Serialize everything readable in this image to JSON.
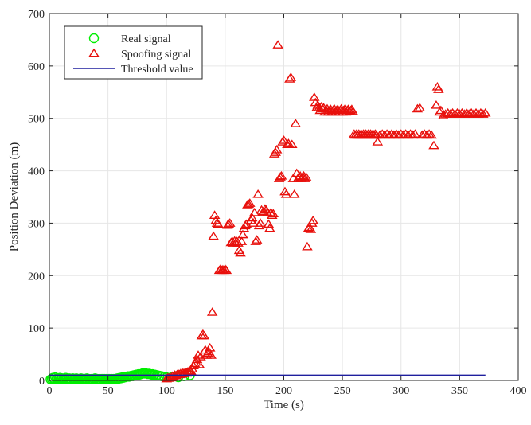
{
  "chart_data": {
    "type": "scatter",
    "title": "",
    "xlabel": "Time (s)",
    "ylabel": "Position Deviation (m)",
    "xlim": [
      0,
      400
    ],
    "ylim": [
      0,
      700
    ],
    "xticks": [
      0,
      50,
      100,
      150,
      200,
      250,
      300,
      350,
      400
    ],
    "yticks": [
      0,
      100,
      200,
      300,
      400,
      500,
      600,
      700
    ],
    "grid": true,
    "legend_position": "top-left",
    "series": [
      {
        "name": "Real signal",
        "marker": "circle",
        "color": "#00ee00",
        "points": [
          [
            1,
            2
          ],
          [
            2,
            3
          ],
          [
            3,
            5
          ],
          [
            4,
            2
          ],
          [
            5,
            6
          ],
          [
            6,
            3
          ],
          [
            7,
            4
          ],
          [
            8,
            2
          ],
          [
            9,
            5
          ],
          [
            10,
            3
          ],
          [
            11,
            4
          ],
          [
            12,
            2
          ],
          [
            13,
            3
          ],
          [
            14,
            5
          ],
          [
            15,
            3
          ],
          [
            16,
            2
          ],
          [
            17,
            4
          ],
          [
            18,
            3
          ],
          [
            19,
            2
          ],
          [
            20,
            4
          ],
          [
            21,
            3
          ],
          [
            22,
            2
          ],
          [
            23,
            4
          ],
          [
            24,
            3
          ],
          [
            25,
            2
          ],
          [
            26,
            3
          ],
          [
            27,
            4
          ],
          [
            28,
            2
          ],
          [
            29,
            3
          ],
          [
            30,
            2
          ],
          [
            31,
            3
          ],
          [
            32,
            4
          ],
          [
            33,
            2
          ],
          [
            34,
            3
          ],
          [
            35,
            2
          ],
          [
            36,
            3
          ],
          [
            37,
            2
          ],
          [
            38,
            3
          ],
          [
            39,
            4
          ],
          [
            40,
            2
          ],
          [
            41,
            3
          ],
          [
            42,
            2
          ],
          [
            43,
            3
          ],
          [
            44,
            2
          ],
          [
            45,
            3
          ],
          [
            46,
            2
          ],
          [
            47,
            3
          ],
          [
            48,
            2
          ],
          [
            49,
            3
          ],
          [
            50,
            2
          ],
          [
            51,
            3
          ],
          [
            52,
            2
          ],
          [
            53,
            3
          ],
          [
            54,
            2
          ],
          [
            55,
            3
          ],
          [
            56,
            2
          ],
          [
            57,
            3
          ],
          [
            58,
            4
          ],
          [
            59,
            3
          ],
          [
            60,
            5
          ],
          [
            61,
            4
          ],
          [
            62,
            6
          ],
          [
            63,
            5
          ],
          [
            64,
            7
          ],
          [
            65,
            6
          ],
          [
            66,
            7
          ],
          [
            67,
            8
          ],
          [
            68,
            7
          ],
          [
            69,
            8
          ],
          [
            70,
            9
          ],
          [
            71,
            8
          ],
          [
            72,
            10
          ],
          [
            73,
            9
          ],
          [
            74,
            11
          ],
          [
            75,
            10
          ],
          [
            76,
            12
          ],
          [
            77,
            11
          ],
          [
            78,
            12
          ],
          [
            79,
            13
          ],
          [
            80,
            14
          ],
          [
            81,
            13
          ],
          [
            82,
            14
          ],
          [
            83,
            13
          ],
          [
            84,
            12
          ],
          [
            85,
            13
          ],
          [
            86,
            12
          ],
          [
            87,
            11
          ],
          [
            88,
            12
          ],
          [
            89,
            10
          ],
          [
            90,
            11
          ],
          [
            92,
            10
          ],
          [
            94,
            9
          ],
          [
            96,
            8
          ],
          [
            98,
            7
          ],
          [
            100,
            6
          ],
          [
            105,
            7
          ],
          [
            110,
            6
          ],
          [
            115,
            8
          ],
          [
            120,
            10
          ]
        ]
      },
      {
        "name": "Spoofing signal",
        "marker": "triangle",
        "color": "#e8100c",
        "points": [
          [
            100,
            3
          ],
          [
            101,
            5
          ],
          [
            102,
            4
          ],
          [
            103,
            6
          ],
          [
            104,
            5
          ],
          [
            105,
            8
          ],
          [
            106,
            7
          ],
          [
            107,
            10
          ],
          [
            108,
            9
          ],
          [
            109,
            11
          ],
          [
            110,
            12
          ],
          [
            111,
            11
          ],
          [
            112,
            13
          ],
          [
            113,
            12
          ],
          [
            114,
            14
          ],
          [
            115,
            13
          ],
          [
            116,
            15
          ],
          [
            117,
            14
          ],
          [
            118,
            16
          ],
          [
            119,
            17
          ],
          [
            120,
            18
          ],
          [
            121,
            17
          ],
          [
            122,
            22
          ],
          [
            123,
            28
          ],
          [
            124,
            32
          ],
          [
            125,
            35
          ],
          [
            126,
            40
          ],
          [
            127,
            48
          ],
          [
            128,
            30
          ],
          [
            129,
            45
          ],
          [
            130,
            85
          ],
          [
            131,
            88
          ],
          [
            132,
            85
          ],
          [
            133,
            58
          ],
          [
            134,
            48
          ],
          [
            135,
            52
          ],
          [
            136,
            55
          ],
          [
            137,
            62
          ],
          [
            138,
            48
          ],
          [
            139,
            130
          ],
          [
            140,
            275
          ],
          [
            141,
            315
          ],
          [
            142,
            305
          ],
          [
            143,
            300
          ],
          [
            144,
            298
          ],
          [
            145,
            210
          ],
          [
            146,
            212
          ],
          [
            147,
            210
          ],
          [
            148,
            211
          ],
          [
            149,
            210
          ],
          [
            150,
            212
          ],
          [
            151,
            210
          ],
          [
            152,
            296
          ],
          [
            153,
            298
          ],
          [
            154,
            300
          ],
          [
            155,
            263
          ],
          [
            156,
            265
          ],
          [
            157,
            262
          ],
          [
            158,
            266
          ],
          [
            159,
            263
          ],
          [
            160,
            265
          ],
          [
            161,
            262
          ],
          [
            162,
            248
          ],
          [
            163,
            243
          ],
          [
            164,
            265
          ],
          [
            165,
            278
          ],
          [
            166,
            290
          ],
          [
            167,
            295
          ],
          [
            168,
            298
          ],
          [
            169,
            335
          ],
          [
            170,
            336
          ],
          [
            171,
            338
          ],
          [
            172,
            305
          ],
          [
            173,
            310
          ],
          [
            174,
            300
          ],
          [
            175,
            320
          ],
          [
            176,
            265
          ],
          [
            177,
            268
          ],
          [
            178,
            355
          ],
          [
            179,
            295
          ],
          [
            180,
            300
          ],
          [
            181,
            325
          ],
          [
            182,
            320
          ],
          [
            183,
            322
          ],
          [
            184,
            327
          ],
          [
            185,
            325
          ],
          [
            186,
            320
          ],
          [
            187,
            298
          ],
          [
            188,
            290
          ],
          [
            189,
            320
          ],
          [
            190,
            315
          ],
          [
            191,
            318
          ],
          [
            192,
            432
          ],
          [
            193,
            435
          ],
          [
            194,
            440
          ],
          [
            195,
            640
          ],
          [
            196,
            385
          ],
          [
            197,
            388
          ],
          [
            198,
            390
          ],
          [
            199,
            455
          ],
          [
            200,
            458
          ],
          [
            201,
            360
          ],
          [
            202,
            355
          ],
          [
            203,
            450
          ],
          [
            204,
            452
          ],
          [
            205,
            575
          ],
          [
            206,
            578
          ],
          [
            207,
            450
          ],
          [
            208,
            385
          ],
          [
            209,
            355
          ],
          [
            210,
            490
          ],
          [
            211,
            395
          ],
          [
            212,
            385
          ],
          [
            213,
            388
          ],
          [
            214,
            390
          ],
          [
            215,
            385
          ],
          [
            216,
            388
          ],
          [
            217,
            390
          ],
          [
            218,
            385
          ],
          [
            219,
            388
          ],
          [
            220,
            255
          ],
          [
            221,
            290
          ],
          [
            222,
            292
          ],
          [
            223,
            288
          ],
          [
            224,
            300
          ],
          [
            225,
            305
          ],
          [
            226,
            540
          ],
          [
            227,
            530
          ],
          [
            228,
            520
          ],
          [
            229,
            525
          ],
          [
            230,
            520
          ],
          [
            231,
            515
          ],
          [
            232,
            522
          ],
          [
            233,
            518
          ],
          [
            234,
            520
          ],
          [
            235,
            512
          ],
          [
            236,
            515
          ],
          [
            237,
            518
          ],
          [
            238,
            512
          ],
          [
            239,
            515
          ],
          [
            240,
            517
          ],
          [
            241,
            512
          ],
          [
            242,
            515
          ],
          [
            243,
            518
          ],
          [
            244,
            512
          ],
          [
            245,
            515
          ],
          [
            246,
            517
          ],
          [
            247,
            512
          ],
          [
            248,
            515
          ],
          [
            249,
            518
          ],
          [
            250,
            512
          ],
          [
            251,
            515
          ],
          [
            252,
            517
          ],
          [
            253,
            512
          ],
          [
            254,
            515
          ],
          [
            255,
            517
          ],
          [
            256,
            513
          ],
          [
            257,
            515
          ],
          [
            258,
            517
          ],
          [
            259,
            513
          ],
          [
            260,
            470
          ],
          [
            261,
            468
          ],
          [
            262,
            470
          ],
          [
            263,
            468
          ],
          [
            264,
            470
          ],
          [
            265,
            468
          ],
          [
            266,
            470
          ],
          [
            267,
            468
          ],
          [
            268,
            470
          ],
          [
            269,
            468
          ],
          [
            270,
            470
          ],
          [
            271,
            468
          ],
          [
            272,
            470
          ],
          [
            273,
            468
          ],
          [
            274,
            470
          ],
          [
            275,
            468
          ],
          [
            276,
            470
          ],
          [
            277,
            468
          ],
          [
            278,
            470
          ],
          [
            279,
            468
          ],
          [
            280,
            455
          ],
          [
            282,
            468
          ],
          [
            284,
            470
          ],
          [
            286,
            468
          ],
          [
            288,
            470
          ],
          [
            290,
            468
          ],
          [
            292,
            470
          ],
          [
            294,
            468
          ],
          [
            296,
            470
          ],
          [
            298,
            468
          ],
          [
            300,
            470
          ],
          [
            302,
            468
          ],
          [
            304,
            470
          ],
          [
            306,
            468
          ],
          [
            308,
            470
          ],
          [
            310,
            468
          ],
          [
            312,
            470
          ],
          [
            314,
            518
          ],
          [
            316,
            520
          ],
          [
            318,
            468
          ],
          [
            320,
            470
          ],
          [
            322,
            468
          ],
          [
            324,
            470
          ],
          [
            326,
            468
          ],
          [
            328,
            448
          ],
          [
            330,
            525
          ],
          [
            331,
            560
          ],
          [
            332,
            555
          ],
          [
            333,
            512
          ],
          [
            334,
            515
          ],
          [
            336,
            505
          ],
          [
            338,
            508
          ],
          [
            340,
            510
          ],
          [
            342,
            508
          ],
          [
            344,
            510
          ],
          [
            346,
            508
          ],
          [
            348,
            510
          ],
          [
            350,
            508
          ],
          [
            352,
            510
          ],
          [
            354,
            508
          ],
          [
            356,
            510
          ],
          [
            358,
            508
          ],
          [
            360,
            510
          ],
          [
            362,
            508
          ],
          [
            364,
            510
          ],
          [
            366,
            508
          ],
          [
            368,
            510
          ],
          [
            370,
            508
          ],
          [
            372,
            510
          ]
        ]
      },
      {
        "name": "Threshold value",
        "marker": "line",
        "color": "#1f1f9e",
        "points": [
          [
            0,
            10
          ],
          [
            372,
            10
          ]
        ]
      }
    ]
  }
}
